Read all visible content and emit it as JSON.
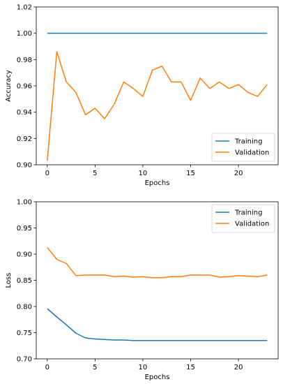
{
  "chart_data": [
    {
      "type": "line",
      "title": "",
      "xlabel": "Epochs",
      "ylabel": "Accuracy",
      "xlim": [
        -1.15,
        24.15
      ],
      "ylim": [
        0.9,
        1.02
      ],
      "xticks": [
        0,
        5,
        10,
        15,
        20
      ],
      "yticks": [
        0.9,
        0.92,
        0.94,
        0.96,
        0.98,
        1.0,
        1.02
      ],
      "ytick_decimals": 2,
      "grid": false,
      "legend_position": "lower-right",
      "x": [
        0,
        1,
        2,
        3,
        4,
        5,
        6,
        7,
        8,
        9,
        10,
        11,
        12,
        13,
        14,
        15,
        16,
        17,
        18,
        19,
        20,
        21,
        22,
        23
      ],
      "series": [
        {
          "name": "Training",
          "color": "#1f77b4",
          "values": [
            1.0,
            1.0,
            1.0,
            1.0,
            1.0,
            1.0,
            1.0,
            1.0,
            1.0,
            1.0,
            1.0,
            1.0,
            1.0,
            1.0,
            1.0,
            1.0,
            1.0,
            1.0,
            1.0,
            1.0,
            1.0,
            1.0,
            1.0,
            1.0
          ]
        },
        {
          "name": "Validation",
          "color": "#ff7f0e",
          "values": [
            0.903,
            0.986,
            0.963,
            0.955,
            0.938,
            0.943,
            0.935,
            0.946,
            0.963,
            0.958,
            0.952,
            0.972,
            0.975,
            0.963,
            0.963,
            0.949,
            0.966,
            0.958,
            0.963,
            0.958,
            0.961,
            0.955,
            0.952,
            0.961
          ]
        }
      ]
    },
    {
      "type": "line",
      "title": "",
      "xlabel": "Epochs",
      "ylabel": "Loss",
      "xlim": [
        -1.15,
        24.15
      ],
      "ylim": [
        0.7,
        1.0
      ],
      "xticks": [
        0,
        5,
        10,
        15,
        20
      ],
      "yticks": [
        0.7,
        0.75,
        0.8,
        0.85,
        0.9,
        0.95,
        1.0
      ],
      "ytick_decimals": 2,
      "grid": false,
      "legend_position": "upper-right",
      "x": [
        0,
        1,
        2,
        3,
        4,
        5,
        6,
        7,
        8,
        9,
        10,
        11,
        12,
        13,
        14,
        15,
        16,
        17,
        18,
        19,
        20,
        21,
        22,
        23
      ],
      "series": [
        {
          "name": "Training",
          "color": "#1f77b4",
          "values": [
            0.796,
            0.78,
            0.765,
            0.749,
            0.74,
            0.738,
            0.737,
            0.736,
            0.736,
            0.735,
            0.735,
            0.735,
            0.735,
            0.735,
            0.735,
            0.735,
            0.735,
            0.735,
            0.735,
            0.735,
            0.735,
            0.735,
            0.735,
            0.735
          ]
        },
        {
          "name": "Validation",
          "color": "#ff7f0e",
          "values": [
            0.913,
            0.89,
            0.882,
            0.859,
            0.86,
            0.86,
            0.86,
            0.857,
            0.858,
            0.856,
            0.857,
            0.855,
            0.855,
            0.857,
            0.857,
            0.86,
            0.86,
            0.86,
            0.856,
            0.857,
            0.859,
            0.858,
            0.857,
            0.86
          ]
        }
      ]
    }
  ]
}
